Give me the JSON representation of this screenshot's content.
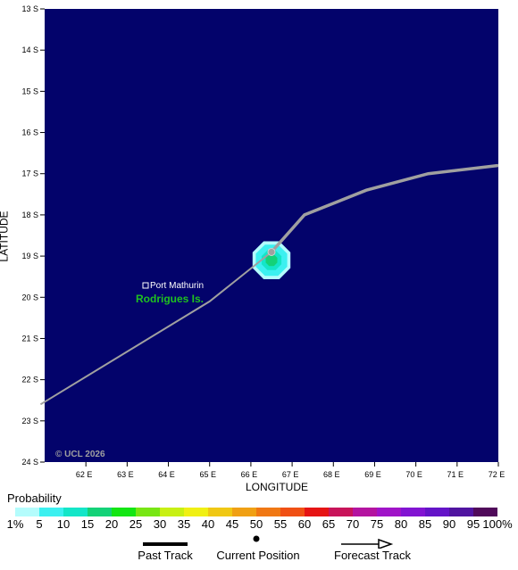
{
  "map": {
    "background_color": "#03036b",
    "lat_labels": [
      "13 S",
      "14 S",
      "15 S",
      "16 S",
      "17 S",
      "18 S",
      "19 S",
      "20 S",
      "21 S",
      "22 S",
      "23 S",
      "24 S"
    ],
    "lon_labels": [
      "62 E",
      "63 E",
      "64 E",
      "65 E",
      "66 E",
      "67 E",
      "68 E",
      "69 E",
      "70 E",
      "71 E",
      "72 E"
    ],
    "x_axis_title": "LONGITUDE",
    "y_axis_title": "LATITUDE",
    "copyright": "© UCL 2026",
    "place_name": "Port Mathurin",
    "island_name": "Rodrigues Is.",
    "island_color": "#1fc21f",
    "track_color": "#a0a0a0"
  },
  "chart_data": {
    "type": "map",
    "lon_range": [
      61,
      72
    ],
    "lat_range": [
      -24,
      -13
    ],
    "past_track": [
      [
        60.9,
        -22.6
      ],
      [
        65.0,
        -20.1
      ],
      [
        66.5,
        -18.9
      ]
    ],
    "current_position": [
      66.5,
      -18.9
    ],
    "forecast_track": [
      [
        66.5,
        -18.9
      ],
      [
        67.3,
        -18.0
      ],
      [
        68.8,
        -17.4
      ],
      [
        70.3,
        -17.0
      ],
      [
        72,
        -16.8
      ]
    ],
    "probability_blob": {
      "center": [
        66.5,
        -19.1
      ],
      "level_pct": 15
    }
  },
  "legend": {
    "probability_title": "Probability",
    "scale_labels": [
      "1%",
      "5",
      "10",
      "15",
      "20",
      "25",
      "30",
      "35",
      "40",
      "45",
      "50",
      "55",
      "60",
      "65",
      "70",
      "75",
      "80",
      "85",
      "90",
      "95",
      "100%"
    ],
    "scale_colors": [
      "#b4fcfc",
      "#3cf0f0",
      "#14e6c8",
      "#14d278",
      "#14e614",
      "#78e614",
      "#c8f014",
      "#f0f014",
      "#f0c814",
      "#f0a014",
      "#f07814",
      "#f05014",
      "#e61414",
      "#c8145a",
      "#b414a0",
      "#a014c8",
      "#8214d2",
      "#6414c8",
      "#5014a0",
      "#500a5a"
    ],
    "past_track_label": "Past Track",
    "current_position_label": "Current Position",
    "forecast_track_label": "Forecast Track"
  }
}
